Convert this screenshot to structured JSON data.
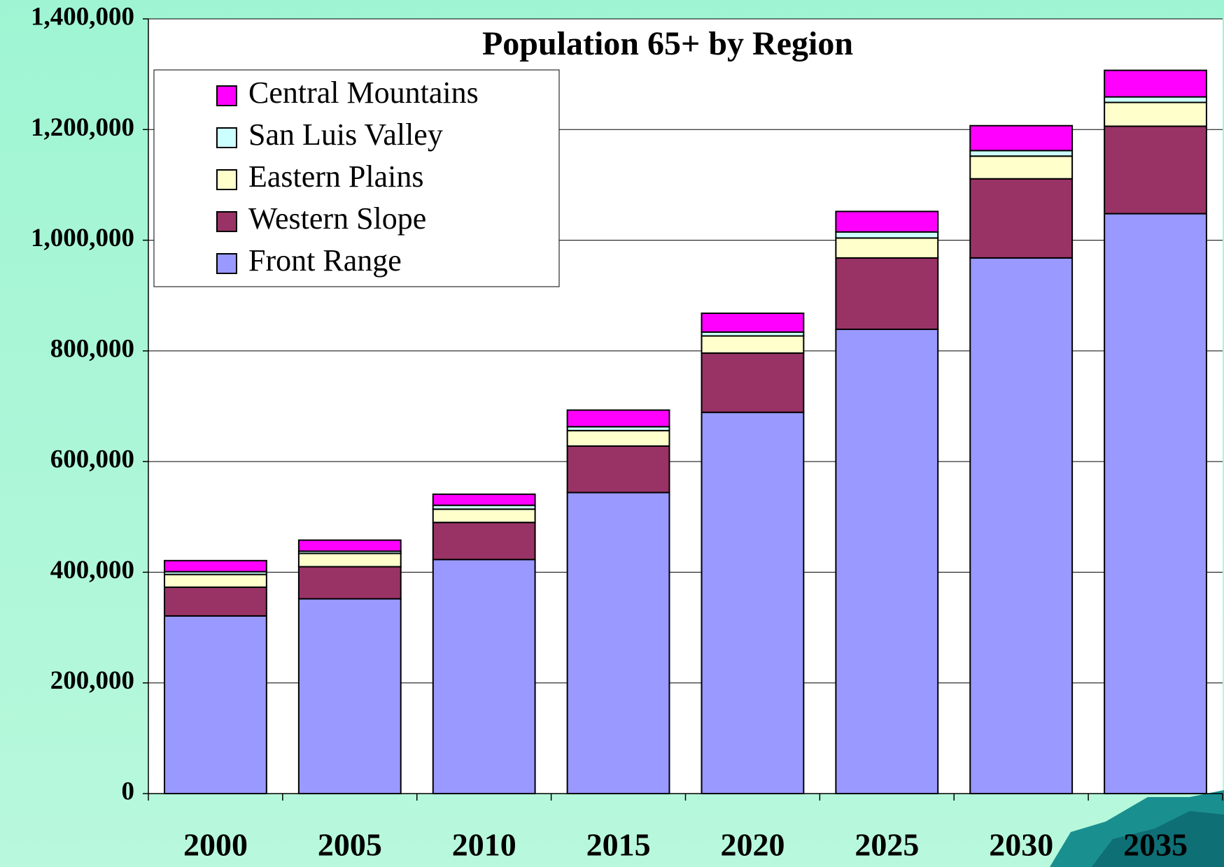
{
  "chart_data": {
    "type": "stacked_bar",
    "title": "Population 65+ by Region",
    "categories": [
      "2000",
      "2005",
      "2010",
      "2015",
      "2020",
      "2025",
      "2030",
      "2035"
    ],
    "series": [
      {
        "name": "Front Range",
        "color": "#9999ff",
        "values": [
          321000,
          352000,
          423000,
          544000,
          689000,
          839000,
          968000,
          1048000
        ]
      },
      {
        "name": "Western Slope",
        "color": "#993366",
        "values": [
          52000,
          58000,
          67000,
          84000,
          107000,
          129000,
          143000,
          158000
        ]
      },
      {
        "name": "Eastern Plains",
        "color": "#ffffcc",
        "values": [
          23000,
          24000,
          24000,
          28000,
          31000,
          36000,
          41000,
          43000
        ]
      },
      {
        "name": "San Luis Valley",
        "color": "#ccffff",
        "values": [
          5000,
          4000,
          7000,
          7000,
          7000,
          11000,
          10000,
          10000
        ]
      },
      {
        "name": "Central Mountains",
        "color": "#ff00ff",
        "values": [
          20000,
          20000,
          20000,
          30000,
          34000,
          37000,
          45000,
          48000
        ]
      }
    ],
    "ylim": [
      0,
      1400000
    ],
    "yticks": [
      0,
      {
        "value": 200000,
        "label": "200,000"
      },
      {
        "value": 400000,
        "label": "400,000"
      },
      {
        "value": 600000,
        "label": "600,000"
      },
      {
        "value": 800000,
        "label": "800,000"
      },
      {
        "value": 1000000,
        "label": "1,000,000"
      },
      {
        "value": 1200000,
        "label": "1,200,000"
      },
      {
        "value": 1400000,
        "label": "1,400,000"
      }
    ],
    "grid": true,
    "legend": "upper left"
  }
}
